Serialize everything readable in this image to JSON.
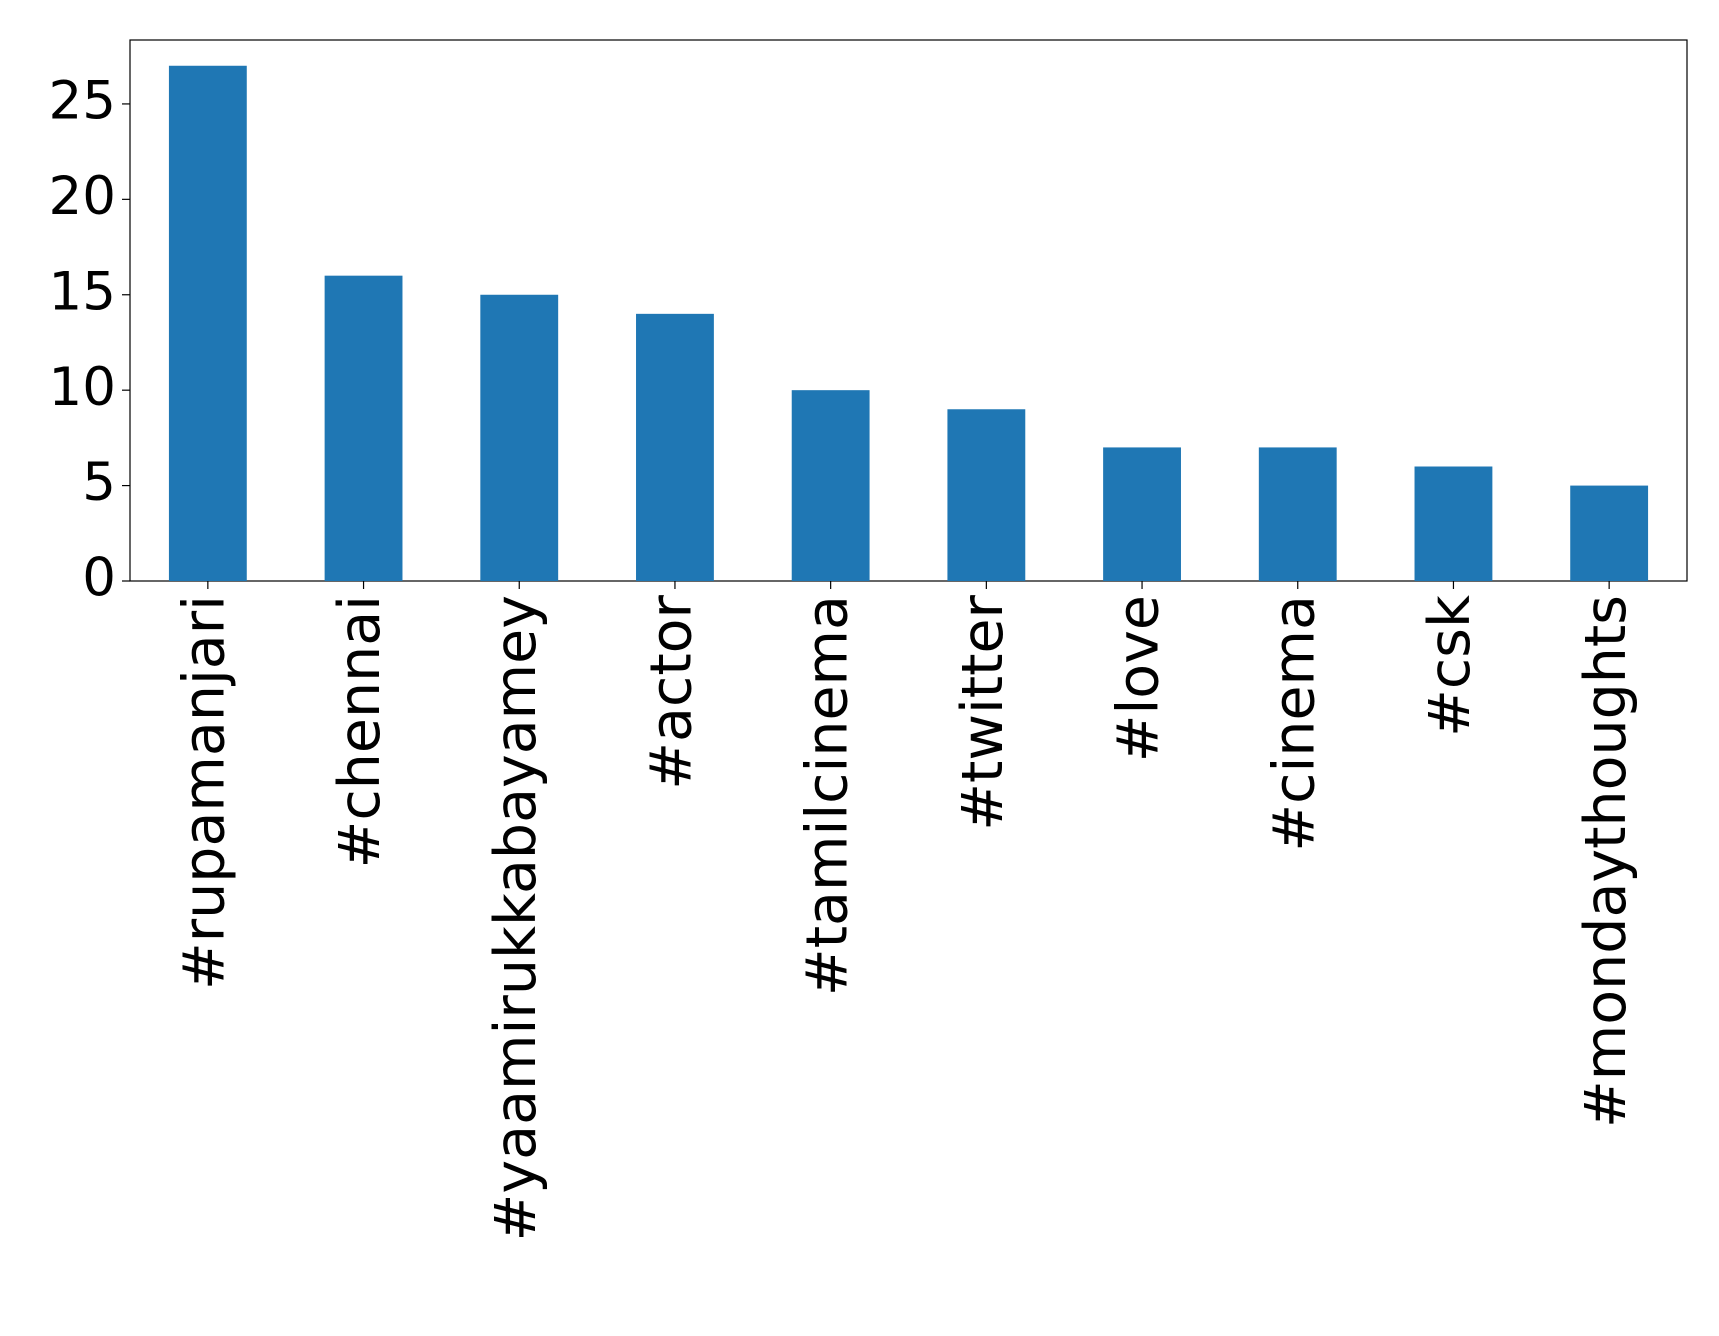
{
  "chart_data": {
    "type": "bar",
    "categories": [
      "#rupamanjari",
      "#chennai",
      "#yaamirukkabayamey",
      "#actor",
      "#tamilcinema",
      "#twitter",
      "#love",
      "#cinema",
      "#csk",
      "#mondaythoughts"
    ],
    "values": [
      27,
      16,
      15,
      14,
      10,
      9,
      7,
      7,
      6,
      5
    ],
    "color": "#1f77b4",
    "ylim": [
      0,
      28.35
    ],
    "yticks": [
      0,
      5,
      10,
      15,
      20,
      25
    ],
    "grid": false
  }
}
